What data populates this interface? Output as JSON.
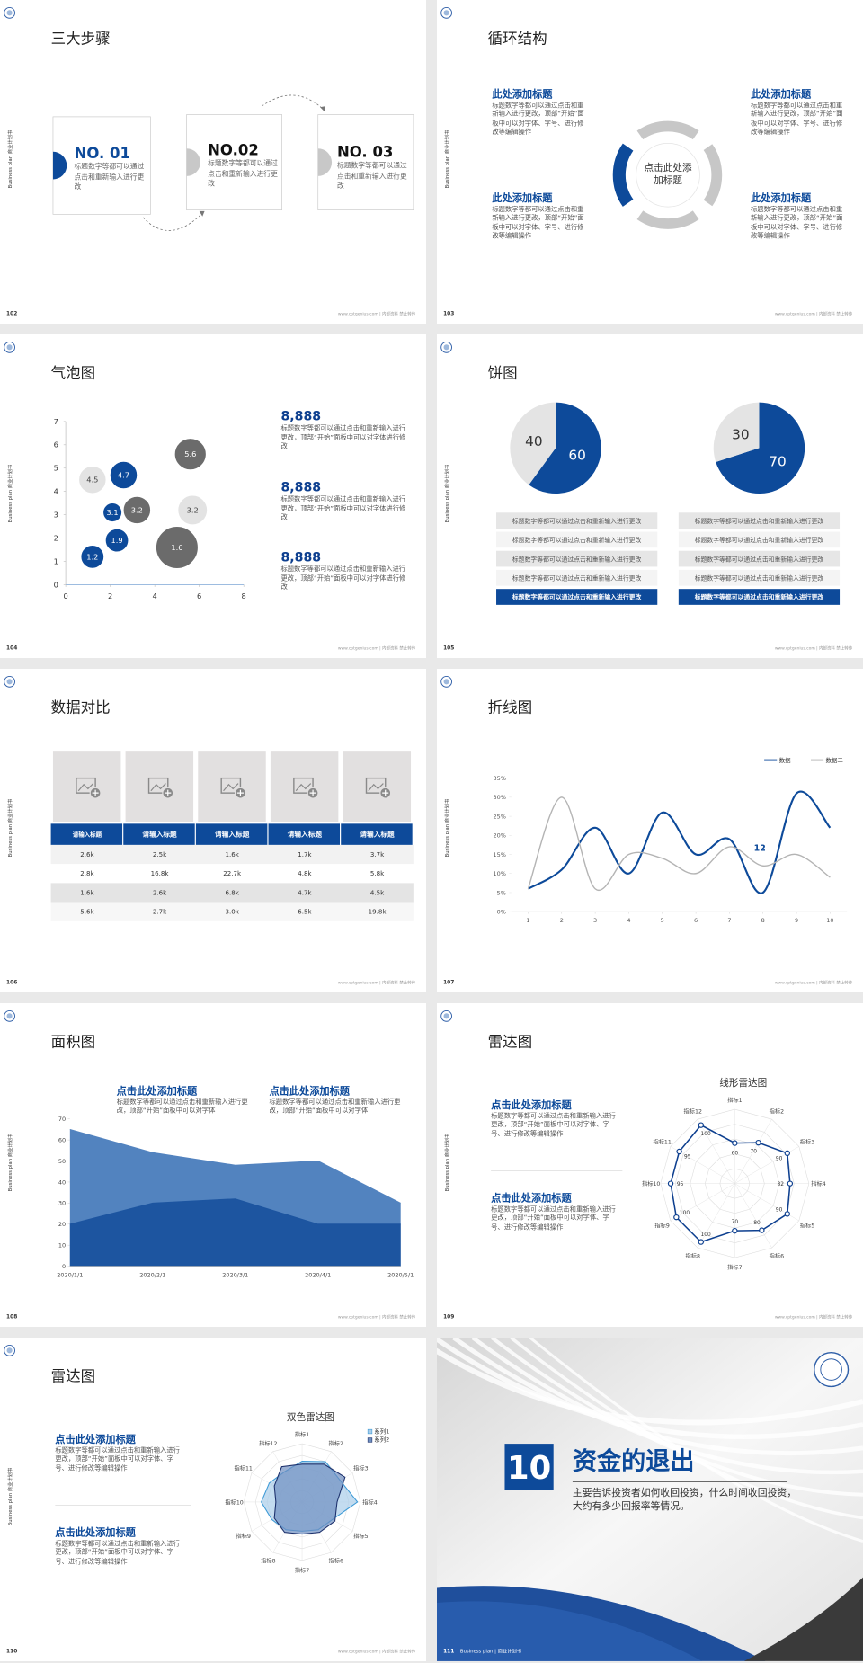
{
  "common": {
    "sidebar": "Business plan 商业计划书",
    "footer": "www.cptgenius.com | 内部资料 禁止转传"
  },
  "slides": [
    {
      "page": "102",
      "title": "三大步骤",
      "steps": [
        {
          "label": "NO. 01",
          "text": "标题数字等都可以通过点击和重新输入进行更改"
        },
        {
          "label": "NO.02",
          "text": "标题数字等都可以通过点击和重新输入进行更改"
        },
        {
          "label": "NO. 03",
          "text": "标题数字等都可以通过点击和重新输入进行更改"
        }
      ]
    },
    {
      "page": "103",
      "title": "循环结构",
      "center": "点击此处添加标题",
      "blocks": [
        {
          "title": "此处添加标题",
          "text": "标题数字等都可以通过点击和重新输入进行更改，顶部“开始”面板中可以对字体、字号、进行修改等编辑操作"
        },
        {
          "title": "此处添加标题",
          "text": "标题数字等都可以通过点击和重新输入进行更改，顶部“开始”面板中可以对字体、字号、进行修改等编辑操作"
        },
        {
          "title": "此处添加标题",
          "text": "标题数字等都可以通过点击和重新输入进行更改，顶部“开始”面板中可以对字体、字号、进行修改等编辑操作"
        },
        {
          "title": "此处添加标题",
          "text": "标题数字等都可以通过点击和重新输入进行更改，顶部“开始”面板中可以对字体、字号、进行修改等编辑操作"
        }
      ]
    },
    {
      "page": "104",
      "title": "气泡图",
      "chart": {
        "type": "bubble",
        "xlim": [
          0,
          8
        ],
        "xticks": [
          0,
          2,
          4,
          6,
          8
        ],
        "ylim": [
          0,
          7
        ],
        "yticks": [
          0,
          1,
          2,
          3,
          4,
          5,
          6,
          7
        ],
        "series": [
          {
            "color": "#0d4a9a",
            "x": [
              1.2,
              2.3,
              2.1,
              2.6
            ],
            "values": [
              1.2,
              1.9,
              3.1,
              4.7
            ],
            "sizes": [
              11,
              11,
              9,
              13
            ]
          },
          {
            "color": "#6b6b6b",
            "x": [
              3.2,
              5.6,
              5.0
            ],
            "values": [
              3.2,
              5.6,
              1.6
            ],
            "sizes": [
              13,
              15,
              20
            ]
          },
          {
            "color": "#e3e3e3",
            "x": [
              1.2,
              5.7
            ],
            "values": [
              4.5,
              3.2
            ],
            "sizes": [
              13,
              14
            ]
          }
        ]
      },
      "stats": [
        {
          "value": "8,888",
          "text": "标题数字等都可以通过点击和重新输入进行更改，顶部“开始”面板中可以对字体进行修改"
        },
        {
          "value": "8,888",
          "text": "标题数字等都可以通过点击和重新输入进行更改，顶部“开始”面板中可以对字体进行修改"
        },
        {
          "value": "8,888",
          "text": "标题数字等都可以通过点击和重新输入进行更改，顶部“开始”面板中可以对字体进行修改"
        }
      ]
    },
    {
      "page": "105",
      "title": "饼图",
      "charts": [
        {
          "type": "pie",
          "values": [
            60,
            40
          ],
          "colors": [
            "#0d4a9a",
            "#e4e4e4"
          ]
        },
        {
          "type": "pie",
          "values": [
            70,
            30
          ],
          "colors": [
            "#0d4a9a",
            "#e4e4e4"
          ]
        }
      ],
      "rows": [
        [
          "标题数字等都可以通过点击和重新输入进行更改",
          "标题数字等都可以通过点击和重新输入进行更改",
          "标题数字等都可以通过点击和重新输入进行更改",
          "标题数字等都可以通过点击和重新输入进行更改",
          "标题数字等都可以通过点击和重新输入进行更改"
        ],
        [
          "标题数字等都可以通过点击和重新输入进行更改",
          "标题数字等都可以通过点击和重新输入进行更改",
          "标题数字等都可以通过点击和重新输入进行更改",
          "标题数字等都可以通过点击和重新输入进行更改",
          "标题数字等都可以通过点击和重新输入进行更改"
        ]
      ]
    },
    {
      "page": "106",
      "title": "数据对比",
      "table": {
        "header": [
          "请输入标题",
          "请输入标题",
          "请输入标题",
          "请输入标题",
          "请输入标题"
        ],
        "rows": [
          [
            "2.6k",
            "2.5k",
            "1.6k",
            "1.7k",
            "3.7k"
          ],
          [
            "2.8k",
            "16.8k",
            "22.7k",
            "4.8k",
            "5.8k"
          ],
          [
            "1.6k",
            "2.6k",
            "6.8k",
            "4.7k",
            "4.5k"
          ],
          [
            "5.6k",
            "2.7k",
            "3.0k",
            "6.5k",
            "19.8k"
          ]
        ]
      }
    },
    {
      "page": "107",
      "title": "折线图",
      "chart": {
        "type": "line",
        "x": [
          1,
          2,
          3,
          4,
          5,
          6,
          7,
          8,
          9,
          10
        ],
        "xlim": [
          0.5,
          10.5
        ],
        "xticks": [
          1,
          2,
          3,
          4,
          5,
          6,
          7,
          8,
          9,
          10
        ],
        "ylim": [
          0,
          35
        ],
        "yticks": [
          {
            "value": 0,
            "label": "0%"
          },
          {
            "value": 5,
            "label": "5%"
          },
          {
            "value": 10,
            "label": "10%"
          },
          {
            "value": 15,
            "label": "15%"
          },
          {
            "value": 20,
            "label": "20%"
          },
          {
            "value": 25,
            "label": "25%"
          },
          {
            "value": 30,
            "label": "30%"
          },
          {
            "value": 35,
            "label": "35%"
          }
        ],
        "legend": "top-right",
        "smooth": true,
        "series": [
          {
            "name": "数据一",
            "color": "#0d4a9a",
            "values": [
              6,
              11,
              22,
              10,
              26,
              15,
              19,
              5,
              31,
              22
            ]
          },
          {
            "name": "数据二",
            "color": "#b4b4b4",
            "values": [
              6,
              30,
              6,
              15,
              14,
              10,
              17,
              12,
              15,
              9
            ],
            "labeled_index": 7
          }
        ]
      }
    },
    {
      "page": "108",
      "title": "面积图",
      "blocks": [
        {
          "title": "点击此处添加标题",
          "text": "标题数字等都可以通过点击和重新输入进行更改，顶部“开始”面板中可以对字体"
        },
        {
          "title": "点击此处添加标题",
          "text": "标题数字等都可以通过点击和重新输入进行更改，顶部“开始”面板中可以对字体"
        }
      ],
      "chart": {
        "type": "area",
        "categories": [
          "2020/1/1",
          "2020/2/1",
          "2020/3/1",
          "2020/4/1",
          "2020/5/1"
        ],
        "ylim": [
          0,
          70
        ],
        "yticks": [
          0,
          10,
          20,
          30,
          40,
          50,
          60,
          70
        ],
        "series": [
          {
            "color": "#5283bf",
            "values": [
              65,
              54,
              48,
              50,
              30
            ]
          },
          {
            "color": "#1d55a0",
            "values": [
              20,
              30,
              32,
              20,
              20
            ]
          }
        ]
      }
    },
    {
      "page": "109",
      "title": "雷达图",
      "blocks": [
        {
          "title": "点击此处添加标题",
          "text": "标题数字等都可以通过点击和重新输入进行更改，顶部“开始”面板中可以对字体、字号、进行修改等编辑操作"
        },
        {
          "title": "点击此处添加标题",
          "text": "标题数字等都可以通过点击和重新输入进行更改，顶部“开始”面板中可以对字体、字号、进行修改等编辑操作"
        }
      ],
      "chart": {
        "type": "radar",
        "title": "线形雷达图",
        "categories": [
          "指标1",
          "指标2",
          "指标3",
          "指标4",
          "指标5",
          "指标6",
          "指标7",
          "指标8",
          "指标9",
          "指标10",
          "指标11",
          "指标12"
        ],
        "rlim": [
          0,
          110
        ],
        "markers": true,
        "data_labels": true,
        "series": [
          {
            "color": "#0d3f8f",
            "values": [
              60,
              70,
              90,
              82,
              90,
              80,
              70,
              100,
              100,
              95,
              95,
              100
            ]
          }
        ]
      }
    },
    {
      "page": "110",
      "title": "雷达图",
      "blocks": [
        {
          "title": "点击此处添加标题",
          "text": "标题数字等都可以通过点击和重新输入进行更改，顶部“开始”面板中可以对字体、字号、进行修改等编辑操作"
        },
        {
          "title": "点击此处添加标题",
          "text": "标题数字等都可以通过点击和重新输入进行更改，顶部“开始”面板中可以对字体、字号、进行修改等编辑操作"
        }
      ],
      "chart": {
        "type": "radar",
        "title": "双色雷达图",
        "categories": [
          "指标1",
          "指标2",
          "指标3",
          "指标4",
          "指标5",
          "指标6",
          "指标7",
          "指标8",
          "指标9",
          "指标10",
          "指标11",
          "指标12"
        ],
        "rlim": [
          0,
          100
        ],
        "markers": false,
        "data_labels": false,
        "legend": "top-right",
        "series": [
          {
            "name": "系列1",
            "color": "#3d9ad6",
            "fill": "#a9cdea",
            "values": [
              70,
              80,
              75,
              95,
              60,
              55,
              50,
              55,
              60,
              70,
              65,
              60
            ]
          },
          {
            "name": "系列2",
            "color": "#1b2f6b",
            "fill": "#6f8fc0",
            "values": [
              65,
              75,
              85,
              60,
              65,
              60,
              55,
              60,
              55,
              45,
              55,
              70
            ]
          }
        ]
      }
    },
    {
      "page": "111",
      "number": "10",
      "title": "资金的退出",
      "text": "主要告诉投资者如何收回投资，什么时间收回投资，大约有多少回报率等情况。",
      "footer": "Business plan | 商业计划书"
    }
  ]
}
